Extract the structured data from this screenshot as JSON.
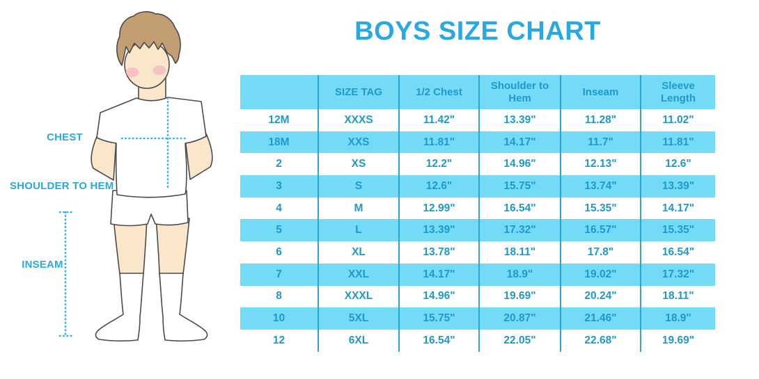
{
  "title": "BOYS SIZE CHART",
  "diagram_labels": {
    "chest": "CHEST",
    "shoulder_to_hem": "SHOULDER TO HEM",
    "inseam": "INSEAM"
  },
  "chart_data": {
    "type": "table",
    "title": "BOYS SIZE CHART",
    "columns": [
      "",
      "SIZE TAG",
      "1/2 Chest",
      "Shoulder to Hem",
      "Inseam",
      "Sleeve Length"
    ],
    "rows": [
      [
        "12M",
        "XXXS",
        "11.42\"",
        "13.39\"",
        "11.28\"",
        "11.02\""
      ],
      [
        "18M",
        "XXS",
        "11.81\"",
        "14.17\"",
        "11.7\"",
        "11.81\""
      ],
      [
        "2",
        "XS",
        "12.2\"",
        "14.96\"",
        "12.13\"",
        "12.6\""
      ],
      [
        "3",
        "S",
        "12.6\"",
        "15.75\"",
        "13.74\"",
        "13.39\""
      ],
      [
        "4",
        "M",
        "12.99\"",
        "16.54\"",
        "15.35\"",
        "14.17\""
      ],
      [
        "5",
        "L",
        "13.39\"",
        "17.32\"",
        "16.57\"",
        "15.35\""
      ],
      [
        "6",
        "XL",
        "13.78\"",
        "18.11\"",
        "17.8\"",
        "16.54\""
      ],
      [
        "7",
        "XXL",
        "14.17\"",
        "18.9\"",
        "19.02\"",
        "17.32\""
      ],
      [
        "8",
        "XXXL",
        "14.96\"",
        "19.69\"",
        "20.24\"",
        "18.11\""
      ],
      [
        "10",
        "5XL",
        "15.75\"",
        "20.87\"",
        "21.46\"",
        "18.9\""
      ],
      [
        "12",
        "6XL",
        "16.54\"",
        "22.05\"",
        "22.68\"",
        "19.69\""
      ]
    ],
    "row_stripe_pattern": "alternating white / light blue, header light blue",
    "grid": "vertical dividers only"
  },
  "colors": {
    "title_blue": "#29A9E0",
    "table_text": "#2098CE",
    "stripe_blue": "#74DBF7",
    "divider_blue": "#2BA3D4",
    "dotted_line": "#2EB5E8",
    "skin": "#FAE7CA",
    "hair": "#C49E73",
    "blush": "#F2ACC1",
    "outline": "#4A4A4A",
    "background": "#FFFFFF"
  }
}
